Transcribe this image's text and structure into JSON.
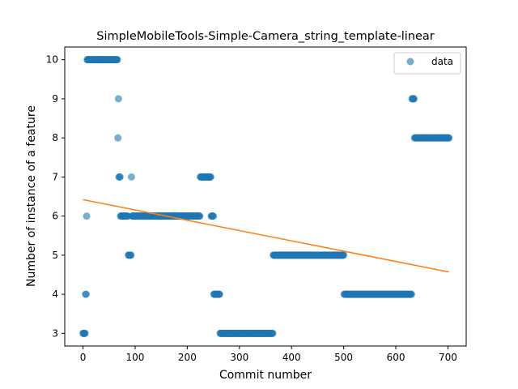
{
  "chart_data": {
    "type": "scatter",
    "title": "SimpleMobileTools-Simple-Camera_string_template-linear",
    "xlabel": "Commit number",
    "ylabel": "Number of instance of a feature",
    "xlim": [
      -35,
      735
    ],
    "ylim": [
      2.675,
      10.325
    ],
    "xticks": [
      0,
      100,
      200,
      300,
      400,
      500,
      600,
      700
    ],
    "yticks": [
      3,
      4,
      5,
      6,
      7,
      8,
      9,
      10
    ],
    "grid": false,
    "legend": {
      "position": "top-right",
      "entries": [
        "data"
      ]
    },
    "colors": {
      "data": "#1f77b4",
      "fit": "#ff7f0e"
    },
    "series": [
      {
        "name": "data",
        "type": "scatter",
        "segments": [
          {
            "x_start": 0,
            "x_end": 4,
            "y": 3
          },
          {
            "x_start": 5,
            "x_end": 6,
            "y": 4
          },
          {
            "x_start": 7,
            "x_end": 7,
            "y": 6
          },
          {
            "x_start": 8,
            "x_end": 66,
            "y": 10
          },
          {
            "x_start": 67,
            "x_end": 67,
            "y": 8
          },
          {
            "x_start": 68,
            "x_end": 68,
            "y": 9
          },
          {
            "x_start": 69,
            "x_end": 71,
            "y": 7
          },
          {
            "x_start": 72,
            "x_end": 86,
            "y": 6
          },
          {
            "x_start": 87,
            "x_end": 92,
            "y": 5
          },
          {
            "x_start": 93,
            "x_end": 93,
            "y": 7
          },
          {
            "x_start": 94,
            "x_end": 224,
            "y": 6
          },
          {
            "x_start": 225,
            "x_end": 245,
            "y": 7
          },
          {
            "x_start": 246,
            "x_end": 250,
            "y": 6
          },
          {
            "x_start": 251,
            "x_end": 262,
            "y": 4
          },
          {
            "x_start": 263,
            "x_end": 364,
            "y": 3
          },
          {
            "x_start": 365,
            "x_end": 500,
            "y": 5
          },
          {
            "x_start": 501,
            "x_end": 630,
            "y": 4
          },
          {
            "x_start": 631,
            "x_end": 635,
            "y": 9
          },
          {
            "x_start": 636,
            "x_end": 702,
            "y": 8
          }
        ]
      },
      {
        "name": "fit",
        "type": "line",
        "x": [
          0,
          702
        ],
        "y": [
          6.42,
          4.57
        ]
      }
    ]
  }
}
